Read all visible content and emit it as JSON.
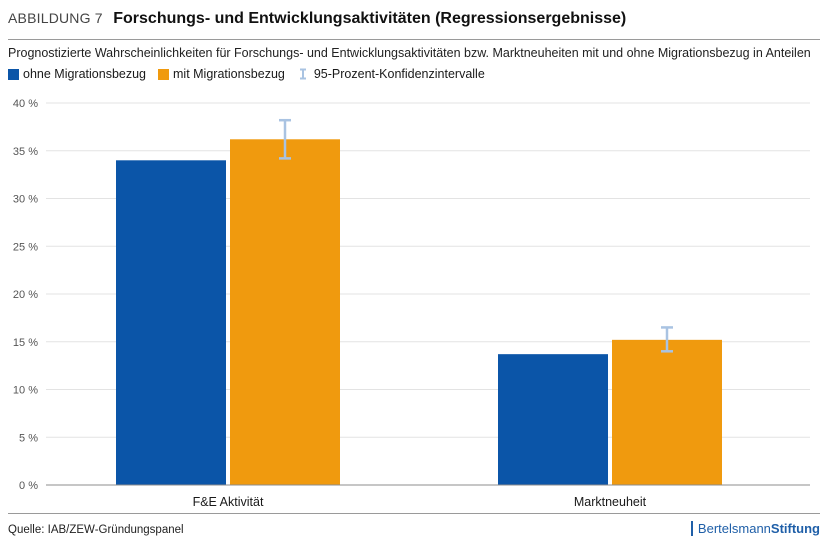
{
  "header": {
    "figure_number": "ABBILDUNG 7",
    "title": "Forschungs- und Entwicklungsaktivitäten (Regressionsergebnisse)"
  },
  "subtitle": "Prognostizierte Wahrscheinlichkeiten für Forschungs- und Entwicklungsaktivitäten bzw. Marktneuheiten mit und ohne Migrationsbezug in Anteilen",
  "legend": {
    "without": "ohne Migrationsbezug",
    "with": "mit Migrationsbezug",
    "ci": "95-Prozent-Konfidenzintervalle"
  },
  "colors": {
    "without": "#0b55a8",
    "with": "#f09a0e",
    "ci": "#a9c3e2",
    "grid": "#e3e3e3",
    "axis": "#8c8c8c"
  },
  "chart_data": {
    "type": "bar",
    "categories": [
      "F&E Aktivität",
      "Marktneuheit"
    ],
    "series": [
      {
        "name": "ohne Migrationsbezug",
        "values": [
          34.0,
          13.7
        ]
      },
      {
        "name": "mit Migrationsbezug",
        "values": [
          36.2,
          15.2
        ],
        "ci": [
          [
            34.2,
            38.2
          ],
          [
            14.0,
            16.5
          ]
        ]
      }
    ],
    "yticks": [
      "0 %",
      "5 %",
      "10 %",
      "15 %",
      "20 %",
      "25 %",
      "30 %",
      "35 %",
      "40 %"
    ],
    "ytick_values": [
      0,
      5,
      10,
      15,
      20,
      25,
      30,
      35,
      40
    ],
    "ylim": [
      0,
      40
    ],
    "grid": true,
    "legend_position": "top-left"
  },
  "footer": {
    "source": "Quelle: IAB/ZEW-Gründungspanel",
    "brand_regular": "Bertelsmann",
    "brand_bold": "Stiftung"
  }
}
